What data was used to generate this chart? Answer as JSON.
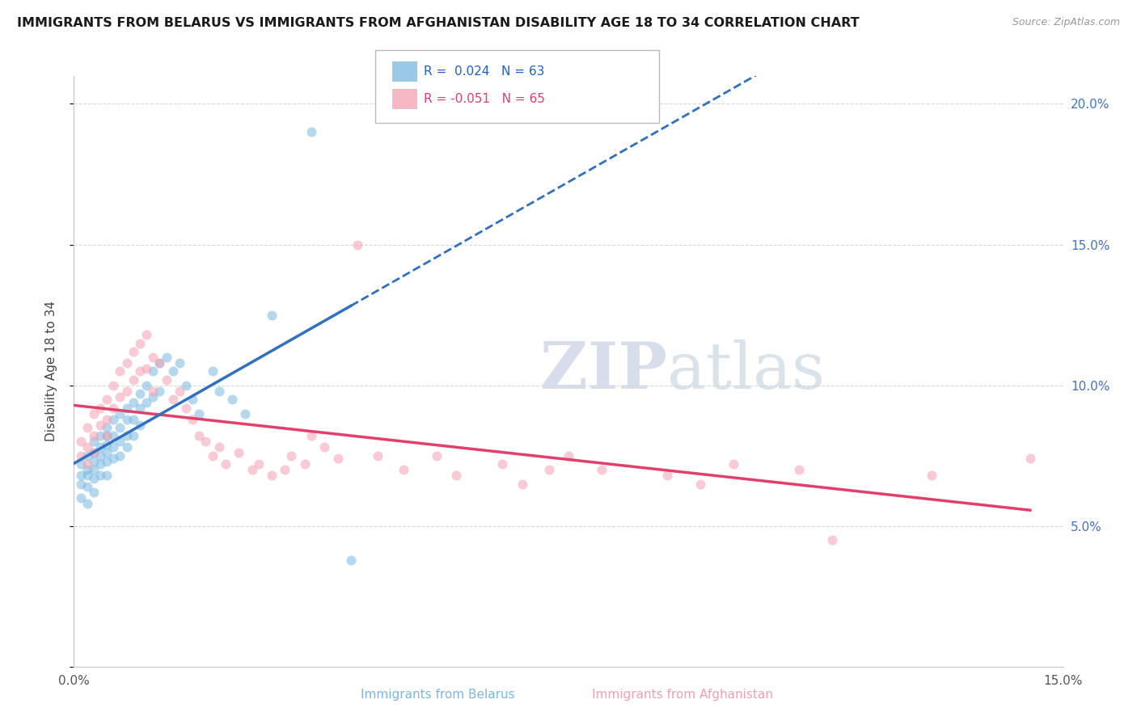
{
  "title": "IMMIGRANTS FROM BELARUS VS IMMIGRANTS FROM AFGHANISTAN DISABILITY AGE 18 TO 34 CORRELATION CHART",
  "source": "Source: ZipAtlas.com",
  "ylabel": "Disability Age 18 to 34",
  "xlim": [
    0.0,
    0.15
  ],
  "ylim": [
    0.0,
    0.21
  ],
  "xtick_positions": [
    0.0,
    0.03,
    0.06,
    0.09,
    0.12,
    0.15
  ],
  "xticklabels": [
    "0.0%",
    "",
    "",
    "",
    "",
    "15.0%"
  ],
  "ytick_positions": [
    0.0,
    0.05,
    0.1,
    0.15,
    0.2
  ],
  "yticklabels_right": [
    "",
    "5.0%",
    "10.0%",
    "15.0%",
    "20.0%"
  ],
  "watermark": "ZIPatlas",
  "color_belarus": "#79b8e0",
  "color_afghanistan": "#f4a0b0",
  "trendline_color_belarus": "#3070c0",
  "trendline_color_afghanistan": "#e0406a",
  "scatter_alpha": 0.55,
  "scatter_size": 75,
  "belarus_x": [
    0.001,
    0.001,
    0.001,
    0.001,
    0.002,
    0.002,
    0.002,
    0.002,
    0.002,
    0.003,
    0.003,
    0.003,
    0.003,
    0.003,
    0.003,
    0.004,
    0.004,
    0.004,
    0.004,
    0.004,
    0.005,
    0.005,
    0.005,
    0.005,
    0.005,
    0.005,
    0.006,
    0.006,
    0.006,
    0.006,
    0.007,
    0.007,
    0.007,
    0.007,
    0.008,
    0.008,
    0.008,
    0.008,
    0.009,
    0.009,
    0.009,
    0.01,
    0.01,
    0.01,
    0.011,
    0.011,
    0.012,
    0.012,
    0.013,
    0.013,
    0.014,
    0.015,
    0.016,
    0.017,
    0.018,
    0.019,
    0.021,
    0.022,
    0.024,
    0.026,
    0.03,
    0.036,
    0.042
  ],
  "belarus_y": [
    0.072,
    0.068,
    0.065,
    0.06,
    0.075,
    0.07,
    0.068,
    0.064,
    0.058,
    0.08,
    0.076,
    0.073,
    0.07,
    0.067,
    0.062,
    0.082,
    0.078,
    0.075,
    0.072,
    0.068,
    0.085,
    0.082,
    0.079,
    0.076,
    0.073,
    0.068,
    0.088,
    0.082,
    0.078,
    0.074,
    0.09,
    0.085,
    0.08,
    0.075,
    0.092,
    0.088,
    0.082,
    0.078,
    0.094,
    0.088,
    0.082,
    0.097,
    0.092,
    0.086,
    0.1,
    0.094,
    0.105,
    0.096,
    0.108,
    0.098,
    0.11,
    0.105,
    0.108,
    0.1,
    0.095,
    0.09,
    0.105,
    0.098,
    0.095,
    0.09,
    0.125,
    0.19,
    0.038
  ],
  "afghanistan_x": [
    0.001,
    0.001,
    0.002,
    0.002,
    0.002,
    0.003,
    0.003,
    0.003,
    0.004,
    0.004,
    0.005,
    0.005,
    0.005,
    0.006,
    0.006,
    0.007,
    0.007,
    0.008,
    0.008,
    0.009,
    0.009,
    0.01,
    0.01,
    0.011,
    0.011,
    0.012,
    0.012,
    0.013,
    0.014,
    0.015,
    0.016,
    0.017,
    0.018,
    0.019,
    0.02,
    0.021,
    0.022,
    0.023,
    0.025,
    0.027,
    0.028,
    0.03,
    0.032,
    0.033,
    0.035,
    0.036,
    0.038,
    0.04,
    0.043,
    0.046,
    0.05,
    0.055,
    0.058,
    0.065,
    0.068,
    0.072,
    0.075,
    0.08,
    0.09,
    0.095,
    0.1,
    0.11,
    0.115,
    0.13,
    0.145
  ],
  "afghanistan_y": [
    0.08,
    0.075,
    0.085,
    0.078,
    0.072,
    0.09,
    0.082,
    0.076,
    0.092,
    0.086,
    0.095,
    0.088,
    0.082,
    0.1,
    0.092,
    0.105,
    0.096,
    0.108,
    0.098,
    0.112,
    0.102,
    0.115,
    0.105,
    0.118,
    0.106,
    0.11,
    0.098,
    0.108,
    0.102,
    0.095,
    0.098,
    0.092,
    0.088,
    0.082,
    0.08,
    0.075,
    0.078,
    0.072,
    0.076,
    0.07,
    0.072,
    0.068,
    0.07,
    0.075,
    0.072,
    0.082,
    0.078,
    0.074,
    0.15,
    0.075,
    0.07,
    0.075,
    0.068,
    0.072,
    0.065,
    0.07,
    0.075,
    0.07,
    0.068,
    0.065,
    0.072,
    0.07,
    0.045,
    0.068,
    0.074
  ]
}
